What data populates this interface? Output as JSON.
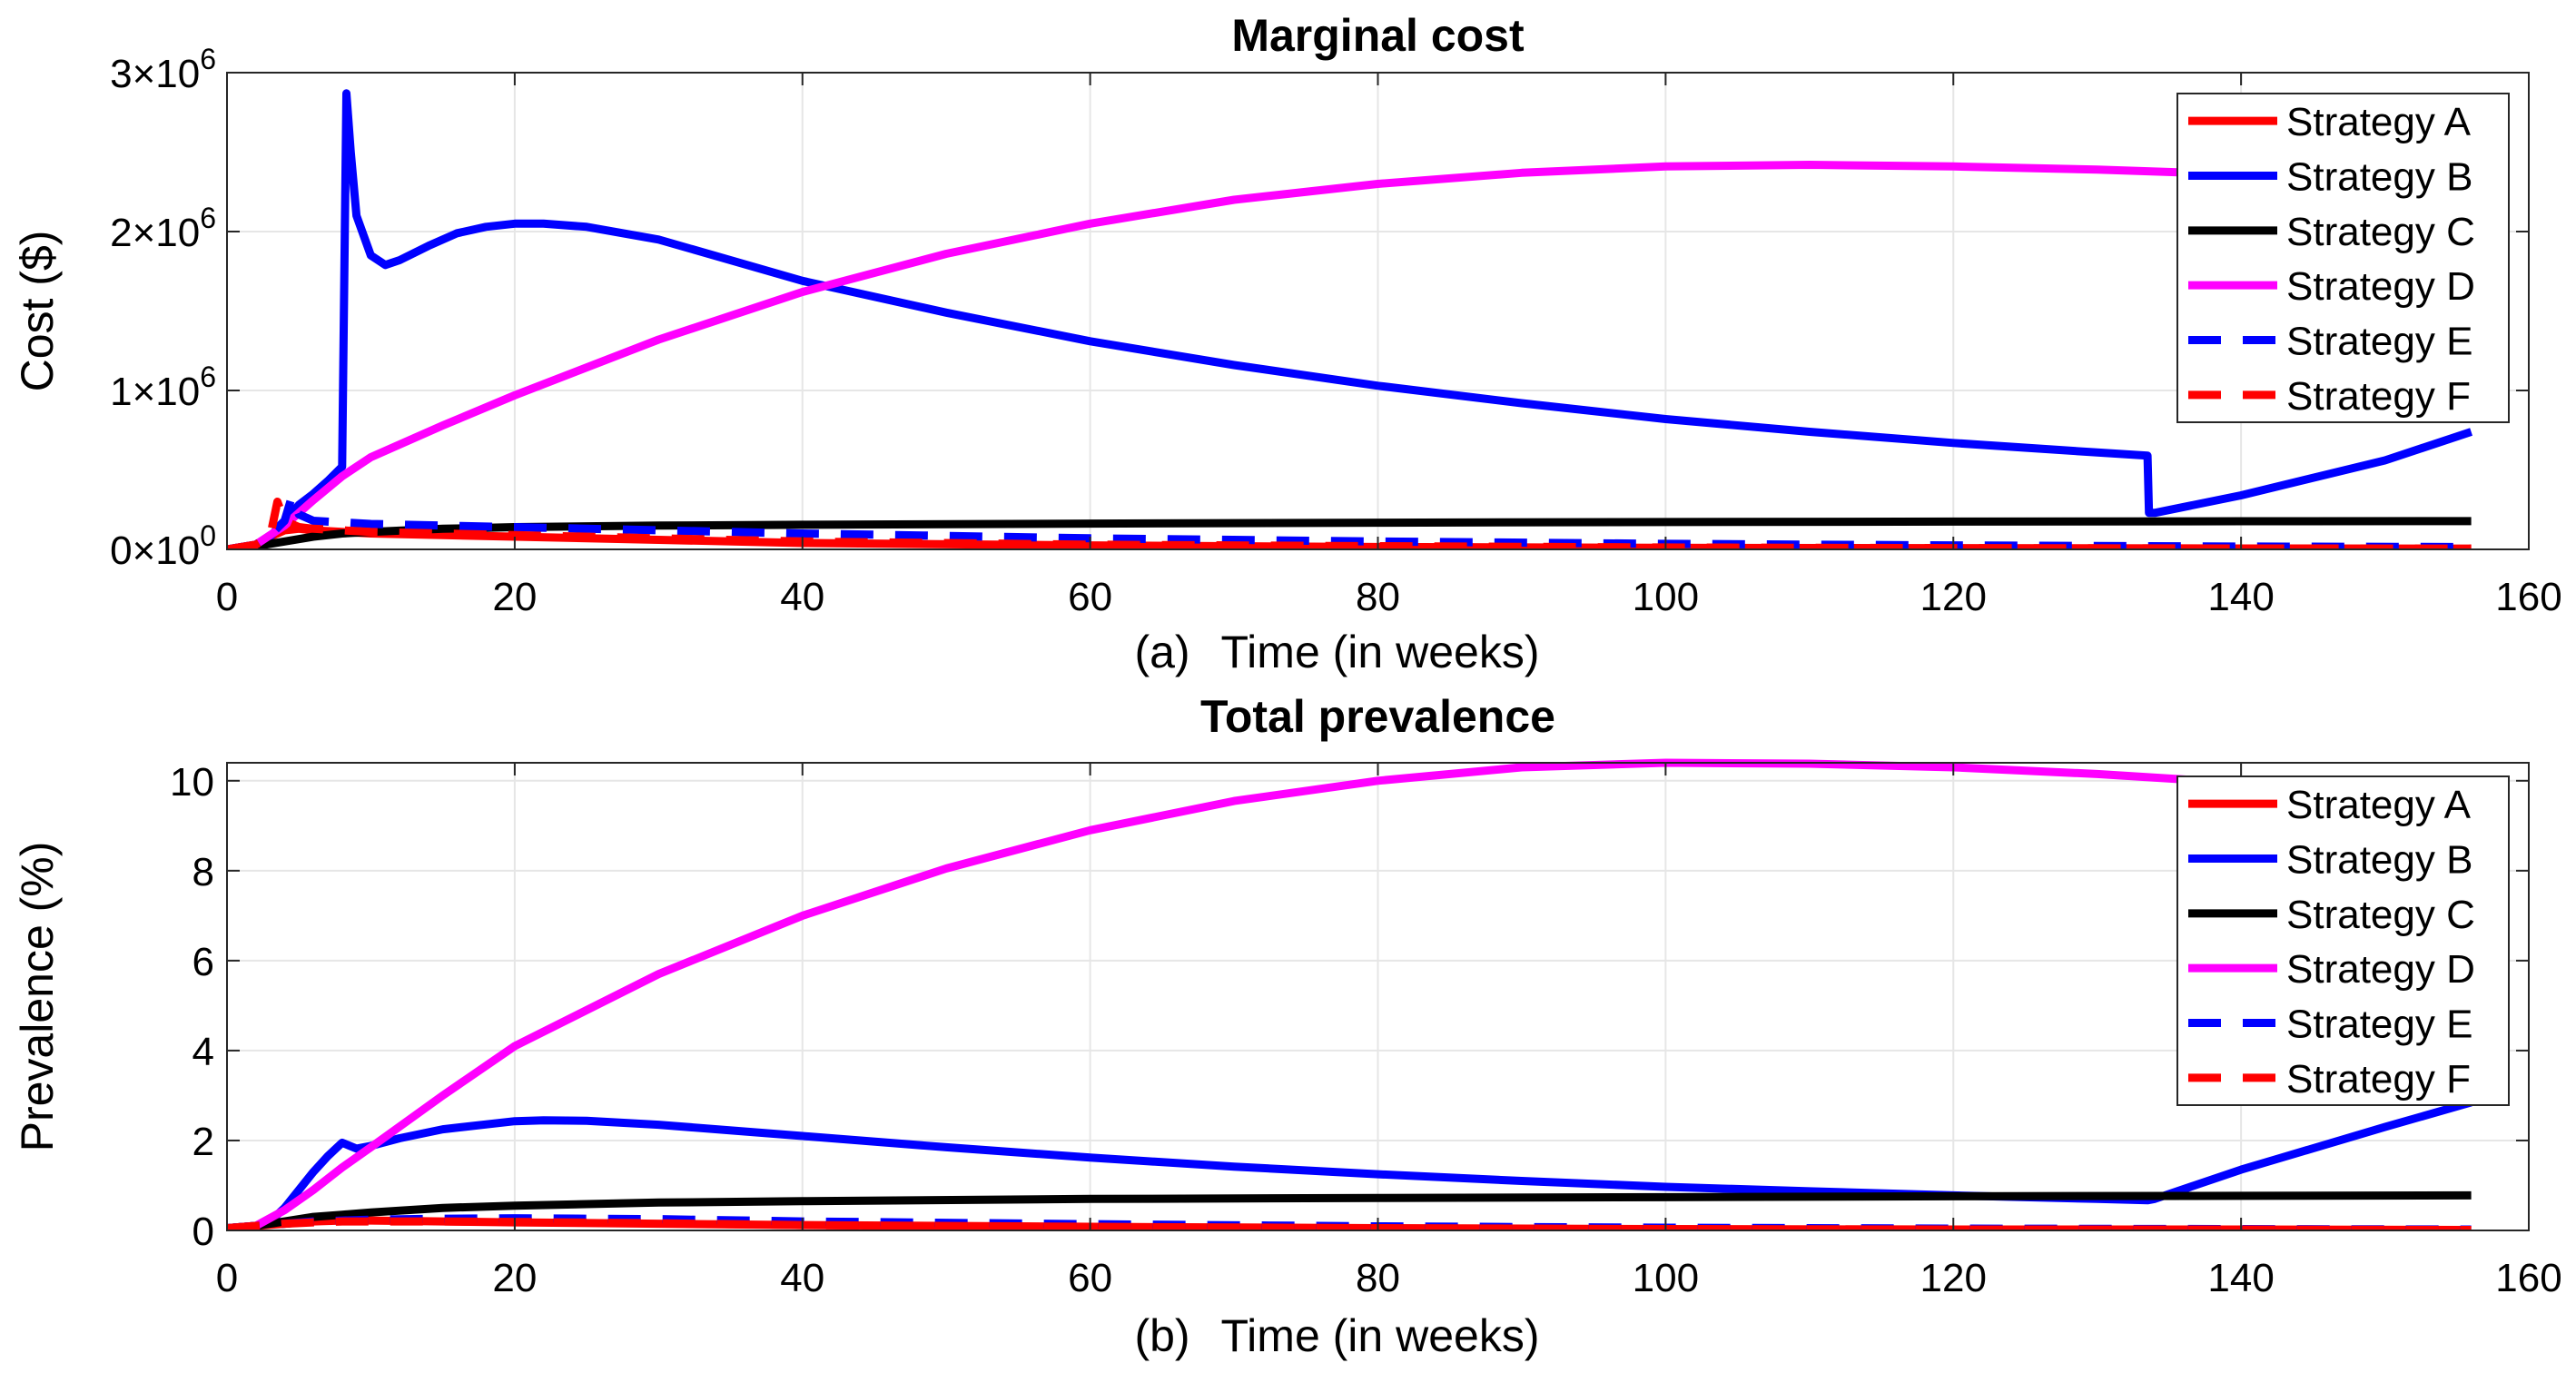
{
  "chart_data": [
    {
      "type": "line",
      "title": "Marginal cost",
      "xlabel": "Time (in weeks)",
      "panel_label": "(a)",
      "ylabel": "Cost ($)",
      "xlim": [
        0,
        160
      ],
      "ylim": [
        0,
        3000000
      ],
      "xticks": [
        0,
        20,
        40,
        60,
        80,
        100,
        120,
        140,
        160
      ],
      "xtick_labels": [
        "0",
        "20",
        "40",
        "60",
        "80",
        "100",
        "120",
        "140",
        "160"
      ],
      "yticks": [
        0,
        1000000,
        2000000,
        3000000
      ],
      "ytick_mantissas": [
        "0",
        "1",
        "2",
        "3"
      ],
      "ytick_times": "×10",
      "ytick_exponents": [
        "0",
        "6",
        "6",
        "6"
      ],
      "grid": true,
      "legend_position": "top-right",
      "series": [
        {
          "name": "Strategy A",
          "color": "#ff0000",
          "dash": "solid",
          "x": [
            0,
            2,
            3,
            4,
            5,
            6,
            8,
            10,
            15,
            20,
            30,
            40,
            60,
            80,
            100,
            120,
            140,
            156
          ],
          "y": [
            0,
            30000,
            80000,
            120000,
            130000,
            120000,
            110000,
            100000,
            90000,
            80000,
            60000,
            40000,
            25000,
            15000,
            10000,
            8000,
            6000,
            5000
          ]
        },
        {
          "name": "Strategy B",
          "color": "#0000ff",
          "dash": "solid",
          "x": [
            0,
            2,
            3,
            4,
            5,
            6,
            7,
            8,
            8.3,
            8.6,
            9,
            10,
            11,
            12,
            14,
            16,
            18,
            20,
            22,
            25,
            30,
            40,
            50,
            60,
            70,
            80,
            90,
            100,
            110,
            120,
            130,
            133.5,
            133.6,
            134,
            140,
            150,
            156
          ],
          "y": [
            0,
            30000,
            80000,
            180000,
            280000,
            350000,
            430000,
            520000,
            2870000,
            2500000,
            2100000,
            1850000,
            1790000,
            1820000,
            1910000,
            1990000,
            2030000,
            2050000,
            2050000,
            2030000,
            1950000,
            1690000,
            1490000,
            1310000,
            1160000,
            1030000,
            920000,
            820000,
            740000,
            670000,
            610000,
            590000,
            230000,
            230000,
            340000,
            560000,
            740000
          ]
        },
        {
          "name": "Strategy C",
          "color": "#000000",
          "dash": "solid",
          "x": [
            0,
            2,
            4,
            6,
            8,
            10,
            15,
            20,
            30,
            40,
            60,
            80,
            100,
            120,
            140,
            156
          ],
          "y": [
            0,
            20000,
            50000,
            80000,
            100000,
            110000,
            130000,
            140000,
            150000,
            155000,
            162000,
            168000,
            172000,
            175000,
            177000,
            178000
          ]
        },
        {
          "name": "Strategy D",
          "color": "#ff00ff",
          "dash": "solid",
          "x": [
            0,
            2,
            4,
            6,
            8,
            10,
            15,
            20,
            30,
            40,
            50,
            60,
            70,
            80,
            90,
            100,
            110,
            120,
            130,
            140,
            145
          ],
          "y": [
            0,
            30000,
            150000,
            310000,
            460000,
            580000,
            780000,
            970000,
            1320000,
            1620000,
            1860000,
            2050000,
            2200000,
            2300000,
            2370000,
            2410000,
            2420000,
            2410000,
            2390000,
            2360000,
            2340000
          ]
        },
        {
          "name": "Strategy E",
          "color": "#0000ff",
          "dash": "dashed",
          "x": [
            0,
            2,
            3,
            4,
            4.5,
            5,
            6,
            8,
            10,
            15,
            20,
            30,
            40,
            60,
            80,
            100,
            120,
            140,
            156
          ],
          "y": [
            0,
            30000,
            90000,
            180000,
            330000,
            220000,
            180000,
            170000,
            160000,
            150000,
            140000,
            120000,
            100000,
            70000,
            50000,
            35000,
            25000,
            18000,
            15000
          ]
        },
        {
          "name": "Strategy F",
          "color": "#ff0000",
          "dash": "dashed",
          "x": [
            0,
            2,
            3,
            3.5,
            4,
            5,
            6,
            8,
            10,
            15,
            20,
            30,
            40,
            60,
            80,
            100,
            120,
            140,
            156
          ],
          "y": [
            0,
            30000,
            80000,
            300000,
            180000,
            140000,
            130000,
            120000,
            110000,
            100000,
            90000,
            70000,
            50000,
            30000,
            20000,
            12000,
            8000,
            6000,
            5000
          ]
        }
      ]
    },
    {
      "type": "line",
      "title": "Total prevalence",
      "xlabel": "Time (in weeks)",
      "panel_label": "(b)",
      "ylabel": "Prevalence (%)",
      "xlim": [
        0,
        160
      ],
      "ylim": [
        0,
        10.4
      ],
      "xticks": [
        0,
        20,
        40,
        60,
        80,
        100,
        120,
        140,
        160
      ],
      "xtick_labels": [
        "0",
        "20",
        "40",
        "60",
        "80",
        "100",
        "120",
        "140",
        "160"
      ],
      "yticks": [
        0,
        2,
        4,
        6,
        8,
        10
      ],
      "ytick_labels": [
        "0",
        "2",
        "4",
        "6",
        "8",
        "10"
      ],
      "grid": true,
      "legend_position": "top-right",
      "series": [
        {
          "name": "Strategy A",
          "color": "#ff0000",
          "dash": "solid",
          "x": [
            0,
            2,
            4,
            6,
            8,
            10,
            20,
            40,
            60,
            80,
            100,
            120,
            140,
            156
          ],
          "y": [
            0.05,
            0.1,
            0.15,
            0.2,
            0.22,
            0.22,
            0.18,
            0.12,
            0.08,
            0.05,
            0.03,
            0.02,
            0.02,
            0.01
          ]
        },
        {
          "name": "Strategy B",
          "color": "#0000ff",
          "dash": "solid",
          "x": [
            0,
            2,
            3,
            4,
            5,
            6,
            7,
            8,
            9,
            10,
            12,
            15,
            20,
            22,
            25,
            30,
            40,
            50,
            60,
            70,
            80,
            90,
            100,
            110,
            120,
            130,
            133.5,
            134,
            140,
            150,
            156
          ],
          "y": [
            0.05,
            0.1,
            0.2,
            0.5,
            0.9,
            1.3,
            1.65,
            1.95,
            1.82,
            1.88,
            2.05,
            2.25,
            2.43,
            2.45,
            2.44,
            2.35,
            2.1,
            1.85,
            1.62,
            1.42,
            1.25,
            1.1,
            0.97,
            0.87,
            0.78,
            0.7,
            0.67,
            0.7,
            1.35,
            2.3,
            2.85
          ]
        },
        {
          "name": "Strategy C",
          "color": "#000000",
          "dash": "solid",
          "x": [
            0,
            2,
            4,
            6,
            8,
            10,
            15,
            20,
            30,
            40,
            60,
            80,
            100,
            120,
            140,
            156
          ],
          "y": [
            0.05,
            0.1,
            0.2,
            0.3,
            0.35,
            0.4,
            0.5,
            0.55,
            0.62,
            0.65,
            0.7,
            0.72,
            0.74,
            0.76,
            0.77,
            0.78
          ]
        },
        {
          "name": "Strategy D",
          "color": "#ff00ff",
          "dash": "solid",
          "x": [
            0,
            2,
            4,
            6,
            8,
            10,
            15,
            20,
            30,
            40,
            50,
            60,
            70,
            80,
            90,
            100,
            110,
            120,
            130,
            140,
            145
          ],
          "y": [
            0.05,
            0.1,
            0.45,
            0.9,
            1.4,
            1.85,
            3.0,
            4.1,
            5.7,
            7.0,
            8.05,
            8.9,
            9.55,
            10.0,
            10.3,
            10.4,
            10.38,
            10.3,
            10.15,
            9.95,
            9.8
          ]
        },
        {
          "name": "Strategy E",
          "color": "#0000ff",
          "dash": "dashed",
          "x": [
            0,
            2,
            4,
            6,
            8,
            10,
            15,
            20,
            30,
            40,
            60,
            80,
            100,
            120,
            140,
            156
          ],
          "y": [
            0.05,
            0.1,
            0.15,
            0.2,
            0.22,
            0.24,
            0.26,
            0.27,
            0.25,
            0.2,
            0.14,
            0.09,
            0.06,
            0.04,
            0.03,
            0.02
          ]
        },
        {
          "name": "Strategy F",
          "color": "#ff0000",
          "dash": "dashed",
          "x": [
            0,
            2,
            4,
            6,
            8,
            10,
            15,
            20,
            30,
            40,
            60,
            80,
            100,
            120,
            140,
            156
          ],
          "y": [
            0.05,
            0.1,
            0.15,
            0.18,
            0.2,
            0.2,
            0.2,
            0.19,
            0.16,
            0.12,
            0.08,
            0.05,
            0.03,
            0.02,
            0.02,
            0.01
          ]
        }
      ]
    }
  ]
}
